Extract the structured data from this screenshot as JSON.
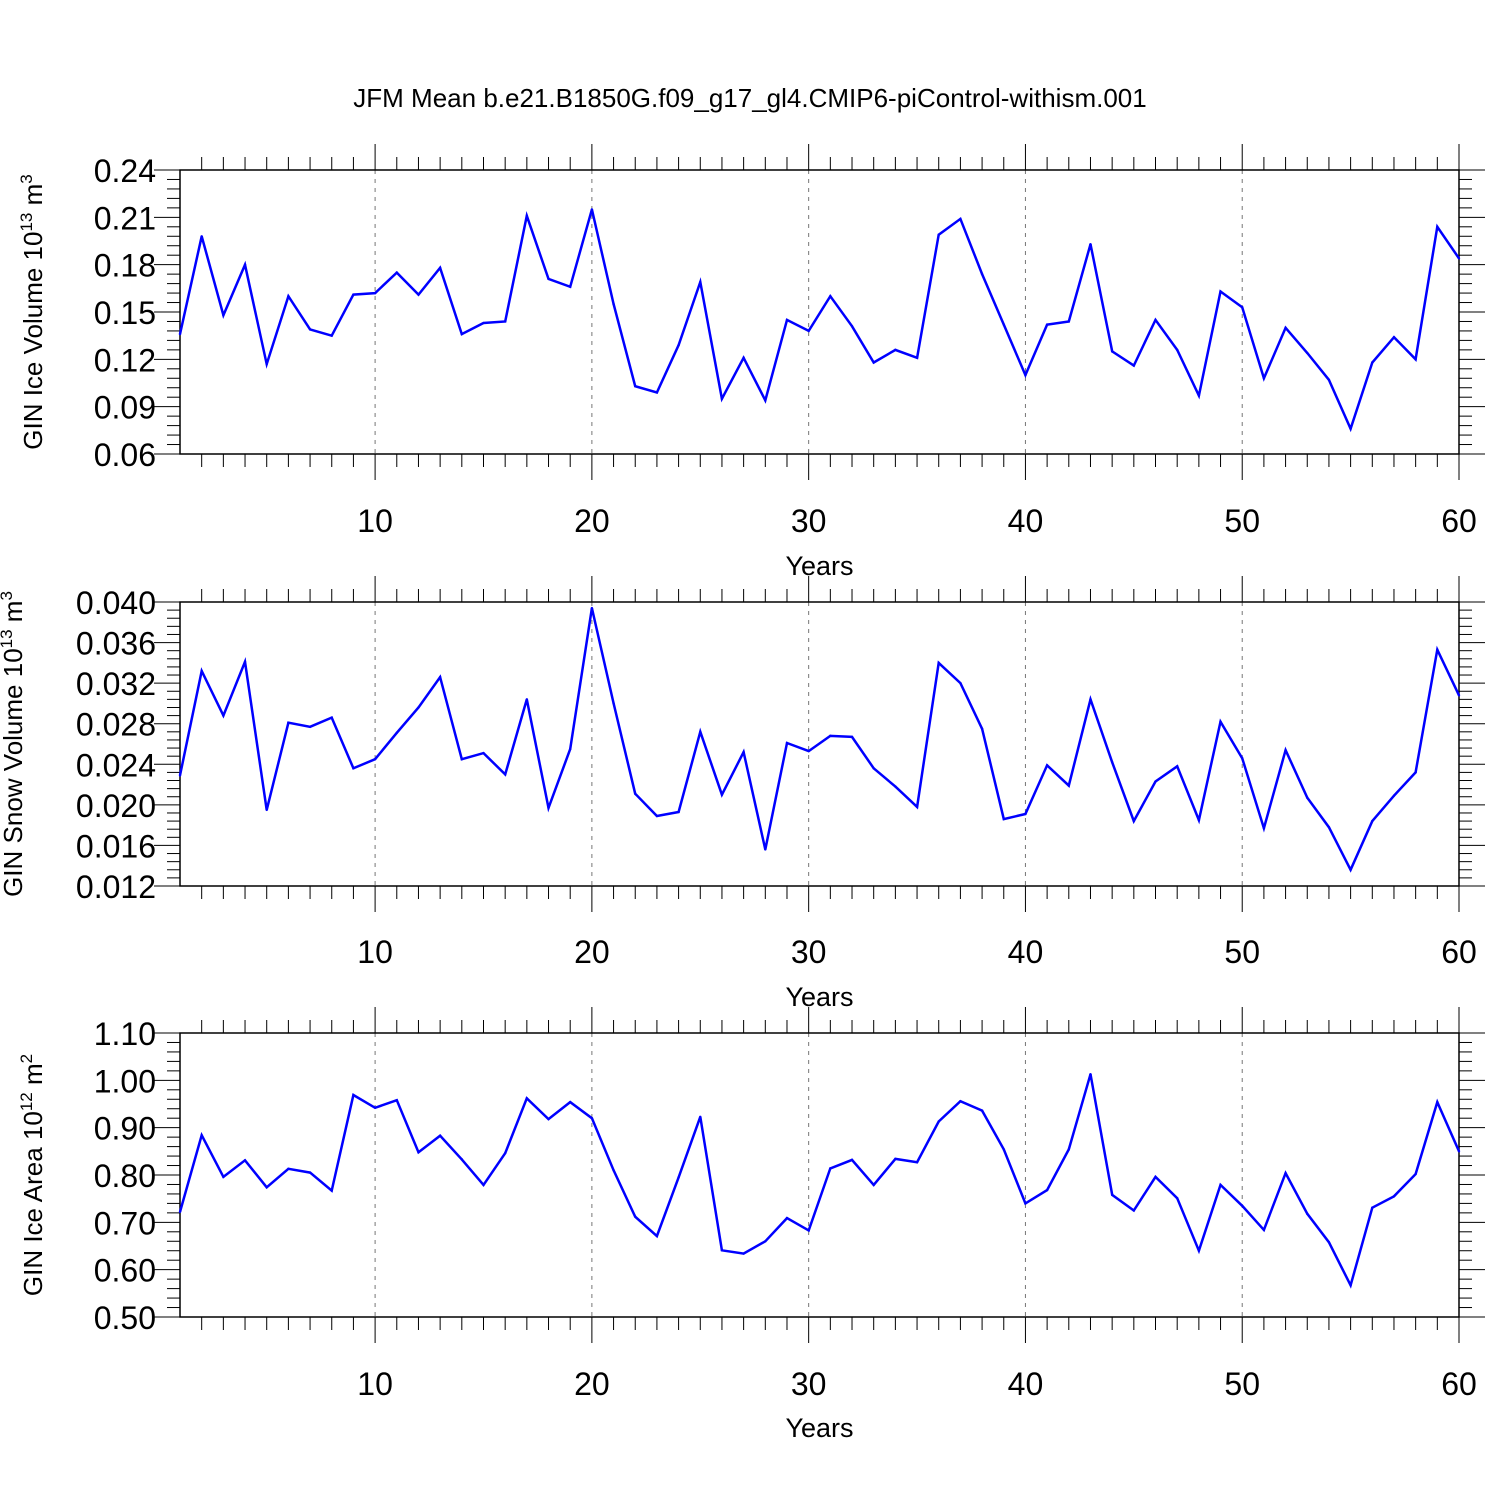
{
  "title": "JFM Mean b.e21.B1850G.f09_g17_gl4.CMIP6-piControl-withism.001",
  "chart_data": [
    {
      "type": "line",
      "xlabel": "Years",
      "ylabel": {
        "main": "GIN Ice Volume 10",
        "sup": "13",
        "unit": " m",
        "unit_sup": "3"
      },
      "xlim": [
        1,
        60
      ],
      "ylim": [
        0.06,
        0.24
      ],
      "xticks": [
        10,
        20,
        30,
        40,
        50,
        60
      ],
      "xtick_labels": [
        "10",
        "20",
        "30",
        "40",
        "50",
        "60"
      ],
      "yticks": [
        0.06,
        0.09,
        0.12,
        0.15,
        0.18,
        0.21,
        0.24
      ],
      "ytick_labels": [
        "0.06",
        "0.09",
        "0.12",
        "0.15",
        "0.18",
        "0.21",
        "0.24"
      ],
      "grid": "dashed vertical at major x ticks",
      "color": "#0000ff",
      "x": [
        1,
        2,
        3,
        4,
        5,
        6,
        7,
        8,
        9,
        10,
        11,
        12,
        13,
        14,
        15,
        16,
        17,
        18,
        19,
        20,
        21,
        22,
        23,
        24,
        25,
        26,
        27,
        28,
        29,
        30,
        31,
        32,
        33,
        34,
        35,
        36,
        37,
        38,
        39,
        40,
        41,
        42,
        43,
        44,
        45,
        46,
        47,
        48,
        49,
        50,
        51,
        52,
        53,
        54,
        55,
        56,
        57,
        58,
        59,
        60
      ],
      "values": [
        0.136,
        0.198,
        0.148,
        0.18,
        0.117,
        0.16,
        0.139,
        0.135,
        0.161,
        0.162,
        0.175,
        0.161,
        0.178,
        0.136,
        0.143,
        0.144,
        0.211,
        0.171,
        0.166,
        0.215,
        0.155,
        0.103,
        0.099,
        0.129,
        0.169,
        0.095,
        0.121,
        0.094,
        0.145,
        0.138,
        0.16,
        0.141,
        0.118,
        0.126,
        0.121,
        0.199,
        0.209,
        0.174,
        0.142,
        0.11,
        0.142,
        0.144,
        0.193,
        0.125,
        0.116,
        0.145,
        0.126,
        0.097,
        0.163,
        0.153,
        0.108,
        0.14,
        0.124,
        0.107,
        0.076,
        0.118,
        0.134,
        0.12,
        0.204,
        0.184
      ]
    },
    {
      "type": "line",
      "xlabel": "Years",
      "ylabel": {
        "main": "GIN Snow Volume 10",
        "sup": "13",
        "unit": " m",
        "unit_sup": "3"
      },
      "xlim": [
        1,
        60
      ],
      "ylim": [
        0.012,
        0.04
      ],
      "xticks": [
        10,
        20,
        30,
        40,
        50,
        60
      ],
      "xtick_labels": [
        "10",
        "20",
        "30",
        "40",
        "50",
        "60"
      ],
      "yticks": [
        0.012,
        0.016,
        0.02,
        0.024,
        0.028,
        0.032,
        0.036,
        0.04
      ],
      "ytick_labels": [
        "0.012",
        "0.016",
        "0.020",
        "0.024",
        "0.028",
        "0.032",
        "0.036",
        "0.040"
      ],
      "grid": "dashed vertical at major x ticks",
      "color": "#0000ff",
      "x": [
        1,
        2,
        3,
        4,
        5,
        6,
        7,
        8,
        9,
        10,
        11,
        12,
        13,
        14,
        15,
        16,
        17,
        18,
        19,
        20,
        21,
        22,
        23,
        24,
        25,
        26,
        27,
        28,
        29,
        30,
        31,
        32,
        33,
        34,
        35,
        36,
        37,
        38,
        39,
        40,
        41,
        42,
        43,
        44,
        45,
        46,
        47,
        48,
        49,
        50,
        51,
        52,
        53,
        54,
        55,
        56,
        57,
        58,
        59,
        60
      ],
      "values": [
        0.0229,
        0.0332,
        0.0288,
        0.0341,
        0.0195,
        0.0281,
        0.0277,
        0.0286,
        0.0236,
        0.0245,
        0.0271,
        0.0296,
        0.0326,
        0.0245,
        0.0251,
        0.023,
        0.0304,
        0.0197,
        0.0255,
        0.0394,
        0.03,
        0.0211,
        0.0189,
        0.0193,
        0.0272,
        0.021,
        0.0252,
        0.0156,
        0.0261,
        0.0253,
        0.0268,
        0.0267,
        0.0236,
        0.0218,
        0.0198,
        0.034,
        0.032,
        0.0275,
        0.0186,
        0.0191,
        0.0239,
        0.0219,
        0.0304,
        0.0242,
        0.0184,
        0.0223,
        0.0238,
        0.0185,
        0.0282,
        0.0246,
        0.0177,
        0.0254,
        0.0207,
        0.0178,
        0.0136,
        0.0184,
        0.0209,
        0.0232,
        0.0353,
        0.0308
      ]
    },
    {
      "type": "line",
      "xlabel": "Years",
      "ylabel": {
        "main": "GIN Ice Area 10",
        "sup": "12",
        "unit": " m",
        "unit_sup": "2"
      },
      "xlim": [
        1,
        60
      ],
      "ylim": [
        0.5,
        1.1
      ],
      "xticks": [
        10,
        20,
        30,
        40,
        50,
        60
      ],
      "xtick_labels": [
        "10",
        "20",
        "30",
        "40",
        "50",
        "60"
      ],
      "yticks": [
        0.5,
        0.6,
        0.7,
        0.8,
        0.9,
        1.0,
        1.1
      ],
      "ytick_labels": [
        "0.50",
        "0.60",
        "0.70",
        "0.80",
        "0.90",
        "1.00",
        "1.10"
      ],
      "grid": "dashed vertical at major x ticks",
      "color": "#0000ff",
      "x": [
        1,
        2,
        3,
        4,
        5,
        6,
        7,
        8,
        9,
        10,
        11,
        12,
        13,
        14,
        15,
        16,
        17,
        18,
        19,
        20,
        21,
        22,
        23,
        24,
        25,
        26,
        27,
        28,
        29,
        30,
        31,
        32,
        33,
        34,
        35,
        36,
        37,
        38,
        39,
        40,
        41,
        42,
        43,
        44,
        45,
        46,
        47,
        48,
        49,
        50,
        51,
        52,
        53,
        54,
        55,
        56,
        57,
        58,
        59,
        60
      ],
      "values": [
        0.722,
        0.884,
        0.796,
        0.831,
        0.774,
        0.813,
        0.805,
        0.767,
        0.969,
        0.942,
        0.958,
        0.848,
        0.883,
        0.833,
        0.779,
        0.846,
        0.962,
        0.918,
        0.954,
        0.92,
        0.81,
        0.712,
        0.671,
        0.795,
        0.923,
        0.641,
        0.634,
        0.66,
        0.709,
        0.683,
        0.814,
        0.832,
        0.779,
        0.834,
        0.827,
        0.913,
        0.956,
        0.936,
        0.854,
        0.74,
        0.768,
        0.854,
        1.013,
        0.758,
        0.725,
        0.796,
        0.751,
        0.64,
        0.779,
        0.735,
        0.684,
        0.804,
        0.718,
        0.658,
        0.567,
        0.731,
        0.755,
        0.802,
        0.954,
        0.85
      ]
    }
  ]
}
